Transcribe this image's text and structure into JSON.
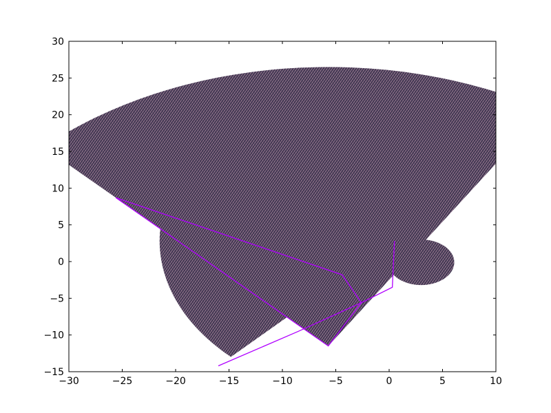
{
  "chart_data": {
    "type": "scatter",
    "title": "",
    "xlabel": "",
    "ylabel": "",
    "xlim": [
      -30,
      10
    ],
    "ylim": [
      -15,
      30
    ],
    "grid": false,
    "x_ticks": [
      "−30",
      "−25",
      "−20",
      "−15",
      "−10",
      "−5",
      "0",
      "5",
      "10"
    ],
    "x_tick_values": [
      -30,
      -25,
      -20,
      -15,
      -10,
      -5,
      0,
      5,
      10
    ],
    "y_ticks": [
      "−15",
      "−10",
      "−5",
      "0",
      "5",
      "10",
      "15",
      "20",
      "25",
      "30"
    ],
    "y_tick_values": [
      -15,
      -10,
      -5,
      0,
      5,
      10,
      15,
      20,
      25,
      30
    ],
    "colors": {
      "fill": "#5b4a5e",
      "moire_light": "#8a6e86",
      "moire_dark": "#2f2a45",
      "edge": "#b000ff"
    },
    "shapes": [
      {
        "kind": "circle",
        "center": [
          3.0,
          -0.1
        ],
        "radius": 3.1
      },
      {
        "kind": "sector",
        "center": [
          0.5,
          2.8
        ],
        "radius": 22.0,
        "start_point": [
          -16.0,
          -14.2
        ],
        "end_point": [
          -6.3,
          17.5
        ]
      },
      {
        "kind": "sector",
        "center": [
          -5.7,
          -11.5
        ],
        "radius": 38.0,
        "start_point": [
          -25.6,
          8.7
        ],
        "end_point": [
          8.2,
          10.5
        ]
      }
    ],
    "edge_line": {
      "x": [
        -25.6,
        -4.4,
        -2.6,
        0.3,
        0.5
      ],
      "y": [
        8.7,
        -1.8,
        -5.6,
        -3.5,
        2.8
      ]
    },
    "edge_line_2": {
      "x": [
        -25.6,
        -5.7,
        -2.6
      ],
      "y": [
        8.7,
        -11.5,
        -5.6
      ]
    },
    "edge_line_3": {
      "x": [
        -16.0,
        -8.5,
        -2.6
      ],
      "y": [
        -14.2,
        -9.5,
        -5.6
      ]
    }
  }
}
